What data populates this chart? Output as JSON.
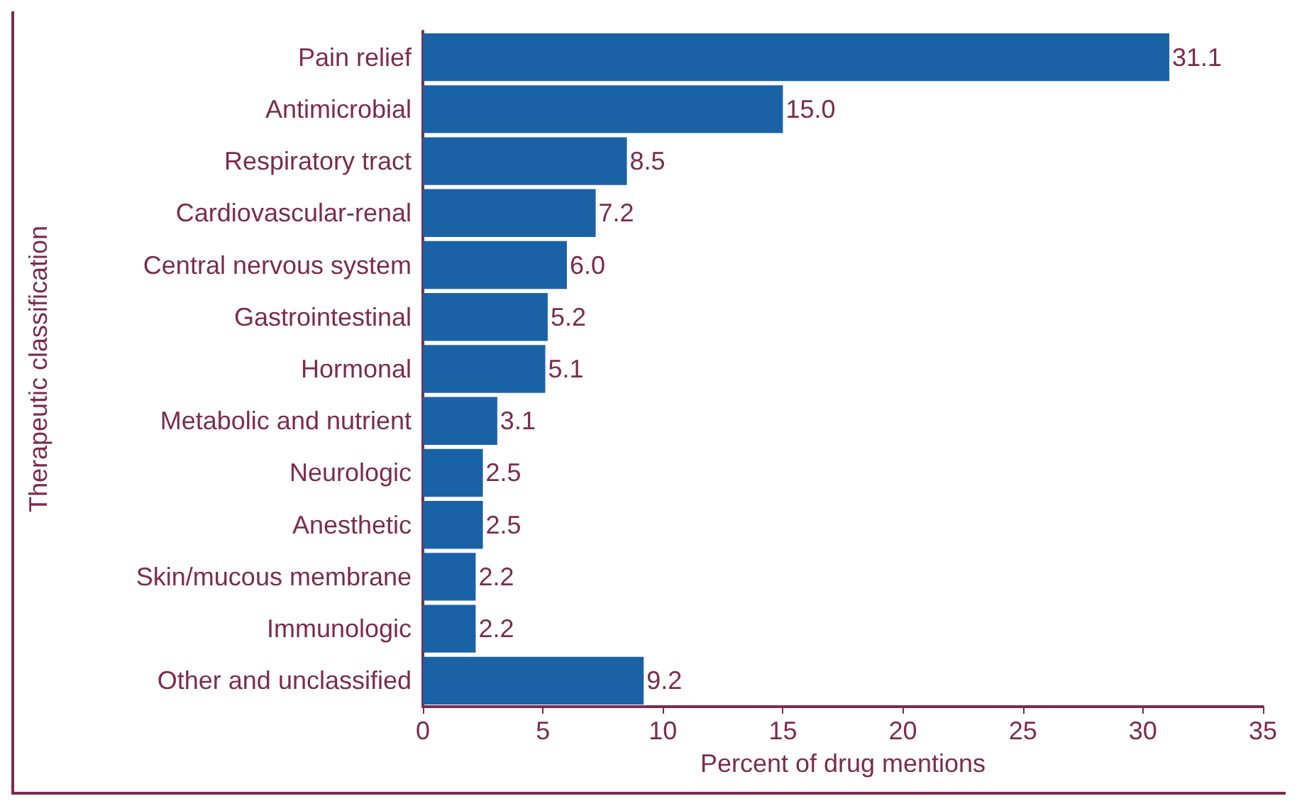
{
  "chart_data": {
    "type": "bar",
    "orientation": "horizontal",
    "xlabel": "Percent of drug mentions",
    "ylabel": "Therapeutic classification",
    "categories": [
      "Pain relief",
      "Antimicrobial",
      "Respiratory tract",
      "Cardiovascular-renal",
      "Central nervous system",
      "Gastrointestinal",
      "Hormonal",
      "Metabolic and nutrient",
      "Neurologic",
      "Anesthetic",
      "Skin/mucous membrane",
      "Immunologic",
      "Other and unclassified"
    ],
    "values": [
      31.1,
      15.0,
      8.5,
      7.2,
      6.0,
      5.2,
      5.1,
      3.1,
      2.5,
      2.5,
      2.2,
      2.2,
      9.2
    ],
    "value_labels": [
      "31.1",
      "15.0",
      "8.5",
      "7.2",
      "6.0",
      "5.2",
      "5.1",
      "3.1",
      "2.5",
      "2.5",
      "2.2",
      "2.2",
      "9.2"
    ],
    "color": "#1a62a6",
    "xlim": [
      0,
      35
    ],
    "xticks": [
      0,
      5,
      10,
      15,
      20,
      25,
      30,
      35
    ],
    "grid": false
  }
}
